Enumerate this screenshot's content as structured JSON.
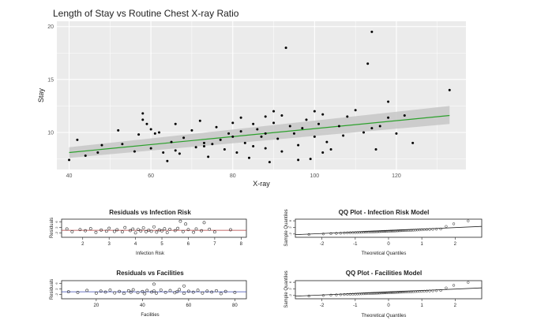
{
  "chart_data": [
    {
      "type": "scatter",
      "title": "Length of Stay vs Routine Chest X-ray Ratio",
      "xlabel": "X-ray",
      "ylabel": "Stay",
      "xlim": [
        37,
        137
      ],
      "ylim": [
        6.5,
        20.5
      ],
      "xticks": [
        40,
        60,
        80,
        100,
        120
      ],
      "yticks": [
        10,
        15,
        20
      ],
      "grid": true,
      "fit_line": {
        "x": [
          40,
          133
        ],
        "y": [
          8.1,
          11.6
        ],
        "color": "#2ca02c"
      },
      "confidence_band": {
        "x": [
          40,
          133
        ],
        "lower": [
          7.6,
          10.8
        ],
        "upper": [
          8.6,
          12.5
        ]
      },
      "points": [
        [
          40,
          7.4
        ],
        [
          42,
          9.3
        ],
        [
          44,
          7.8
        ],
        [
          47,
          8.1
        ],
        [
          48,
          8.8
        ],
        [
          52,
          10.2
        ],
        [
          53,
          8.9
        ],
        [
          56,
          8.2
        ],
        [
          57,
          9.8
        ],
        [
          58,
          11.8
        ],
        [
          58,
          11.2
        ],
        [
          59,
          10.8
        ],
        [
          60,
          10.3
        ],
        [
          60,
          8.5
        ],
        [
          61,
          9.9
        ],
        [
          62,
          10.0
        ],
        [
          63,
          8.1
        ],
        [
          64,
          7.3
        ],
        [
          65,
          9.1
        ],
        [
          66,
          8.3
        ],
        [
          67,
          8.0
        ],
        [
          68,
          9.5
        ],
        [
          70,
          10.2
        ],
        [
          71,
          8.6
        ],
        [
          72,
          11.1
        ],
        [
          73,
          9.0
        ],
        [
          74,
          7.7
        ],
        [
          75,
          8.9
        ],
        [
          76,
          10.5
        ],
        [
          77,
          9.3
        ],
        [
          78,
          8.4
        ],
        [
          79,
          9.9
        ],
        [
          80,
          10.9
        ],
        [
          80,
          9.6
        ],
        [
          81,
          8.1
        ],
        [
          82,
          11.4
        ],
        [
          82,
          10.1
        ],
        [
          83,
          9.0
        ],
        [
          84,
          7.6
        ],
        [
          85,
          8.7
        ],
        [
          86,
          10.3
        ],
        [
          87,
          9.6
        ],
        [
          88,
          11.5
        ],
        [
          88,
          8.5
        ],
        [
          89,
          7.2
        ],
        [
          90,
          10.9
        ],
        [
          91,
          9.4
        ],
        [
          92,
          11.6
        ],
        [
          92,
          8.2
        ],
        [
          93,
          18.0
        ],
        [
          94,
          10.6
        ],
        [
          95,
          9.9
        ],
        [
          96,
          8.8
        ],
        [
          97,
          10.4
        ],
        [
          98,
          11.2
        ],
        [
          99,
          7.5
        ],
        [
          100,
          9.6
        ],
        [
          100,
          12.0
        ],
        [
          101,
          10.8
        ],
        [
          102,
          11.7
        ],
        [
          103,
          9.1
        ],
        [
          104,
          8.4
        ],
        [
          106,
          10.6
        ],
        [
          107,
          9.7
        ],
        [
          108,
          11.5
        ],
        [
          110,
          12.1
        ],
        [
          112,
          10.0
        ],
        [
          113,
          16.5
        ],
        [
          114,
          10.4
        ],
        [
          114,
          19.5
        ],
        [
          115,
          8.4
        ],
        [
          116,
          10.6
        ],
        [
          118,
          12.9
        ],
        [
          118,
          11.4
        ],
        [
          120,
          9.9
        ],
        [
          122,
          11.6
        ],
        [
          124,
          9.0
        ],
        [
          133,
          14.0
        ],
        [
          96,
          7.4
        ],
        [
          88,
          9.9
        ],
        [
          73,
          8.7
        ],
        [
          85,
          10.8
        ],
        [
          66,
          10.8
        ],
        [
          90,
          12.0
        ],
        [
          102,
          8.1
        ]
      ]
    },
    {
      "type": "scatter",
      "title": "Residuals vs Infection Risk",
      "xlabel": "Infection Risk",
      "ylabel": "Residuals",
      "xticks": [
        "2",
        "3",
        "4",
        "5",
        "6",
        "7",
        "8"
      ],
      "yticks": [
        "-2",
        "2",
        "6"
      ],
      "xlim": [
        1.2,
        8.2
      ],
      "ylim": [
        -5,
        8
      ],
      "points": [
        [
          1.4,
          1
        ],
        [
          1.6,
          -1
        ],
        [
          1.9,
          0.5
        ],
        [
          2.1,
          -0.3
        ],
        [
          2.3,
          1.2
        ],
        [
          2.5,
          -1.5
        ],
        [
          2.7,
          0.2
        ],
        [
          2.9,
          -0.6
        ],
        [
          3.0,
          1.5
        ],
        [
          3.2,
          -0.8
        ],
        [
          3.3,
          0.4
        ],
        [
          3.5,
          -1.1
        ],
        [
          3.6,
          2.0
        ],
        [
          3.8,
          -0.2
        ],
        [
          3.9,
          0.9
        ],
        [
          4.0,
          -1.8
        ],
        [
          4.1,
          0.6
        ],
        [
          4.2,
          -0.5
        ],
        [
          4.3,
          1.8
        ],
        [
          4.4,
          -1.0
        ],
        [
          4.5,
          0.1
        ],
        [
          4.6,
          -0.7
        ],
        [
          4.7,
          2.5
        ],
        [
          4.8,
          -1.3
        ],
        [
          4.9,
          0.3
        ],
        [
          5.0,
          -0.4
        ],
        [
          5.1,
          1.1
        ],
        [
          5.2,
          -1.6
        ],
        [
          5.3,
          0.7
        ],
        [
          5.5,
          -0.2
        ],
        [
          5.6,
          1.4
        ],
        [
          5.8,
          -0.9
        ],
        [
          5.9,
          4.5
        ],
        [
          6.0,
          0.5
        ],
        [
          6.2,
          -1.4
        ],
        [
          6.3,
          1.0
        ],
        [
          6.5,
          -0.3
        ],
        [
          6.8,
          0.8
        ],
        [
          7.0,
          -1.2
        ],
        [
          7.6,
          0.4
        ],
        [
          5.7,
          6.5
        ],
        [
          6.6,
          5.5
        ]
      ],
      "ref_line_y": 0,
      "ref_line_color": "#b03a3a"
    },
    {
      "type": "scatter",
      "title": "QQ Plot - Infection Risk Model",
      "xlabel": "Theoretical Quantiles",
      "ylabel": "Sample Quantiles",
      "xticks": [
        "-2",
        "-1",
        "0",
        "1",
        "2"
      ],
      "yticks": [
        "-2",
        "2",
        "6"
      ],
      "xlim": [
        -2.8,
        2.8
      ],
      "ylim": [
        -4,
        7
      ]
    },
    {
      "type": "scatter",
      "title": "Residuals vs Facilities",
      "xlabel": "Facilities",
      "ylabel": "Residuals",
      "xticks": [
        "20",
        "40",
        "60",
        "80"
      ],
      "yticks": [
        "-2",
        "2",
        "6"
      ],
      "xlim": [
        5,
        85
      ],
      "ylim": [
        -5,
        8
      ],
      "points": [
        [
          8,
          0
        ],
        [
          12,
          -0.5
        ],
        [
          16,
          1
        ],
        [
          20,
          -1
        ],
        [
          22,
          0.5
        ],
        [
          24,
          -0.2
        ],
        [
          26,
          1.2
        ],
        [
          28,
          -0.8
        ],
        [
          30,
          0.3
        ],
        [
          32,
          -1.2
        ],
        [
          34,
          0.8
        ],
        [
          35,
          -0.3
        ],
        [
          36,
          1.5
        ],
        [
          38,
          -0.6
        ],
        [
          40,
          0.2
        ],
        [
          41,
          -1.4
        ],
        [
          42,
          1.0
        ],
        [
          44,
          -0.2
        ],
        [
          45,
          0.6
        ],
        [
          46,
          -1.0
        ],
        [
          48,
          1.3
        ],
        [
          50,
          -0.4
        ],
        [
          52,
          0.9
        ],
        [
          54,
          -0.7
        ],
        [
          55,
          0.1
        ],
        [
          56,
          1.6
        ],
        [
          58,
          -1.1
        ],
        [
          60,
          0.4
        ],
        [
          62,
          -0.3
        ],
        [
          64,
          1.1
        ],
        [
          66,
          -0.9
        ],
        [
          68,
          0.5
        ],
        [
          70,
          -0.2
        ],
        [
          72,
          0.8
        ],
        [
          74,
          -1.3
        ],
        [
          76,
          0.3
        ],
        [
          80,
          -0.5
        ],
        [
          45,
          5.5
        ],
        [
          58,
          4.2
        ]
      ],
      "ref_line_y": 0,
      "ref_line_color": "#3a4ab0"
    },
    {
      "type": "scatter",
      "title": "QQ Plot - Facilities Model",
      "xlabel": "Theoretical Quantiles",
      "ylabel": "Sample Quantiles",
      "xticks": [
        "-2",
        "-1",
        "0",
        "1",
        "2"
      ],
      "yticks": [
        "-2",
        "2",
        "6"
      ],
      "xlim": [
        -2.8,
        2.8
      ],
      "ylim": [
        -4,
        7
      ]
    }
  ],
  "colors": {
    "panel_bg": "#ebebeb",
    "grid": "#ffffff",
    "point": "#000000",
    "fit": "#2ca02c",
    "band": "#c7c7c7"
  }
}
